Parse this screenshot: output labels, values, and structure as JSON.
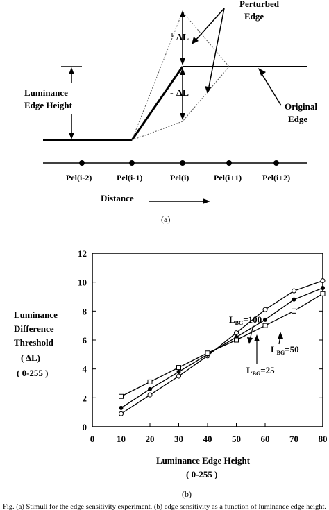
{
  "panel_a": {
    "label": "(a)",
    "perturbed_edge": [
      "Perturbed",
      "Edge"
    ],
    "original_edge": [
      "Original",
      "Edge"
    ],
    "luminance_edge_height": [
      "Luminance",
      "Edge Height"
    ],
    "plus_delta": "+",
    "minus_delta": "-",
    "delta_l": "ΔL",
    "pels": [
      "Pel(i-2)",
      "Pel(i-1)",
      "Pel(i)",
      "Pel(i+1)",
      "Pel(i+2)"
    ],
    "distance": "Distance"
  },
  "panel_b": {
    "label": "(b)",
    "ylabel": [
      "Luminance",
      "Difference",
      "Threshold",
      "( ΔL)",
      "( 0-255 )"
    ],
    "xlabel": [
      "Luminance Edge Height",
      "( 0-255 )"
    ],
    "series_labels": [
      {
        "L": "L",
        "sub": "BG",
        "rest": "=100"
      },
      {
        "L": "L",
        "sub": "BG",
        "rest": "=50"
      },
      {
        "L": "L",
        "sub": "BG",
        "rest": "=25"
      }
    ],
    "caption": "Fig. (a) Stimuli for the edge sensitivity experiment, (b) edge sensitivity as a function of luminance edge height."
  },
  "chart_data": {
    "type": "line",
    "x": [
      10,
      20,
      30,
      40,
      50,
      60,
      70,
      80
    ],
    "xlabel": "Luminance Edge Height ( 0-255 )",
    "ylabel": "Luminance Difference Threshold ( ΔL) ( 0-255 )",
    "xlim": [
      0,
      80
    ],
    "ylim": [
      0,
      12
    ],
    "xticks": [
      0,
      10,
      20,
      30,
      40,
      50,
      60,
      70,
      80
    ],
    "yticks": [
      0,
      2,
      4,
      6,
      8,
      10,
      12
    ],
    "grid": false,
    "series": [
      {
        "name": "L_BG=100",
        "marker": "open-circle",
        "values": [
          0.9,
          2.2,
          3.5,
          4.9,
          6.5,
          8.1,
          9.4,
          10.1
        ]
      },
      {
        "name": "L_BG=50",
        "marker": "filled-circle",
        "values": [
          1.3,
          2.6,
          3.8,
          5.0,
          6.2,
          7.4,
          8.8,
          9.6
        ]
      },
      {
        "name": "L_BG=25",
        "marker": "open-square",
        "values": [
          2.1,
          3.1,
          4.1,
          5.1,
          6.0,
          7.0,
          8.0,
          9.2
        ]
      }
    ]
  }
}
